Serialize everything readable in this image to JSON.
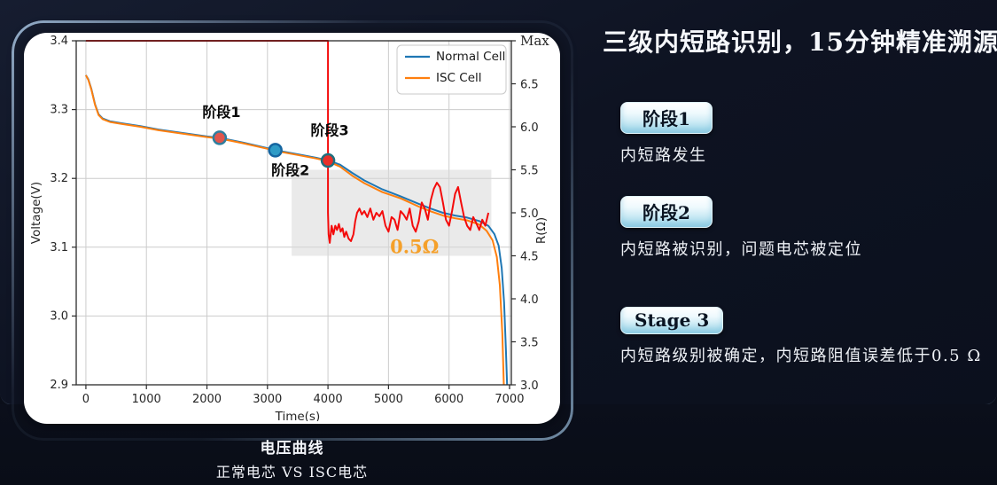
{
  "panel": {
    "title": "三级内短路识别，15分钟精准溯源",
    "stages": [
      {
        "badge": "阶段1",
        "description": "内短路发生"
      },
      {
        "badge": "阶段2",
        "description": "内短路被识别，问题电芯被定位"
      },
      {
        "badge": "Stage 3",
        "description": "内短路级别被确定，内短路阻值误差低于0.5 Ω"
      }
    ]
  },
  "caption": {
    "title": "电压曲线",
    "subtitle": "正常电芯 VS ISC电芯"
  },
  "chart_data": {
    "type": "line",
    "xlabel": "Time(s)",
    "ylabel_left": "Voltage(V)",
    "ylabel_right": "R(Ω)",
    "xlim": [
      -160,
      7030
    ],
    "ylim_left": [
      2.9,
      3.4
    ],
    "ylim_right": [
      3.0,
      7.0
    ],
    "x_ticks": [
      0,
      1000,
      2000,
      3000,
      4000,
      5000,
      6000,
      7000
    ],
    "left_ticks": [
      2.9,
      3.0,
      3.1,
      3.2,
      3.3,
      3.4
    ],
    "right_ticks": [
      {
        "r": 7.0,
        "label": "Max"
      },
      {
        "r": 6.5,
        "label": "6.5"
      },
      {
        "r": 6.0,
        "label": "6.0"
      },
      {
        "r": 5.5,
        "label": "5.5"
      },
      {
        "r": 5.0,
        "label": "5.0"
      },
      {
        "r": 4.5,
        "label": "4.5"
      },
      {
        "r": 4.0,
        "label": "4.0"
      },
      {
        "r": 3.5,
        "label": "3.5"
      },
      {
        "r": 3.0,
        "label": "3.0"
      }
    ],
    "grid": true,
    "colors": {
      "normal": "#1f77b4",
      "isc": "#ff7f0e",
      "resistance": "#f40b0b",
      "grid": "#cccccc",
      "spine": "#2b2b2b",
      "band": "#d9d9d9"
    },
    "legend": {
      "position": "top-right",
      "entries": [
        {
          "label": "Normal Cell",
          "color": "#1f77b4"
        },
        {
          "label": "ISC Cell",
          "color": "#ff7f0e"
        }
      ]
    },
    "band": {
      "x0": 3400,
      "x1": 6700,
      "r0": 4.5,
      "r1": 5.5,
      "opacity": 0.55
    },
    "series": [
      {
        "name": "Normal Cell",
        "axis": "left",
        "color": "#1f77b4",
        "width": 2,
        "points": [
          [
            0,
            3.35
          ],
          [
            40,
            3.344
          ],
          [
            90,
            3.33
          ],
          [
            150,
            3.308
          ],
          [
            210,
            3.293
          ],
          [
            280,
            3.287
          ],
          [
            400,
            3.283
          ],
          [
            600,
            3.28
          ],
          [
            900,
            3.276
          ],
          [
            1200,
            3.271
          ],
          [
            1600,
            3.266
          ],
          [
            2000,
            3.261
          ],
          [
            2210,
            3.259
          ],
          [
            2600,
            3.252
          ],
          [
            3000,
            3.244
          ],
          [
            3130,
            3.241
          ],
          [
            3500,
            3.235
          ],
          [
            3800,
            3.23
          ],
          [
            4000,
            3.226
          ],
          [
            4200,
            3.22
          ],
          [
            4400,
            3.208
          ],
          [
            4600,
            3.197
          ],
          [
            4900,
            3.184
          ],
          [
            5200,
            3.174
          ],
          [
            5500,
            3.163
          ],
          [
            5700,
            3.156
          ],
          [
            5900,
            3.15
          ],
          [
            6100,
            3.146
          ],
          [
            6300,
            3.143
          ],
          [
            6500,
            3.138
          ],
          [
            6650,
            3.131
          ],
          [
            6750,
            3.119
          ],
          [
            6820,
            3.102
          ],
          [
            6870,
            3.07
          ],
          [
            6910,
            3.02
          ],
          [
            6940,
            2.95
          ],
          [
            6960,
            2.9
          ]
        ]
      },
      {
        "name": "ISC Cell",
        "axis": "left",
        "color": "#ff7f0e",
        "width": 2,
        "points": [
          [
            0,
            3.35
          ],
          [
            40,
            3.343
          ],
          [
            90,
            3.329
          ],
          [
            150,
            3.307
          ],
          [
            210,
            3.292
          ],
          [
            280,
            3.286
          ],
          [
            400,
            3.282
          ],
          [
            600,
            3.279
          ],
          [
            900,
            3.275
          ],
          [
            1200,
            3.27
          ],
          [
            1600,
            3.265
          ],
          [
            2000,
            3.26
          ],
          [
            2210,
            3.258
          ],
          [
            2600,
            3.251
          ],
          [
            3000,
            3.243
          ],
          [
            3130,
            3.24
          ],
          [
            3500,
            3.234
          ],
          [
            3800,
            3.229
          ],
          [
            4000,
            3.225
          ],
          [
            4200,
            3.217
          ],
          [
            4400,
            3.204
          ],
          [
            4600,
            3.193
          ],
          [
            4900,
            3.18
          ],
          [
            5200,
            3.171
          ],
          [
            5500,
            3.159
          ],
          [
            5700,
            3.152
          ],
          [
            5900,
            3.146
          ],
          [
            6100,
            3.142
          ],
          [
            6300,
            3.139
          ],
          [
            6500,
            3.133
          ],
          [
            6620,
            3.124
          ],
          [
            6720,
            3.11
          ],
          [
            6790,
            3.086
          ],
          [
            6840,
            3.045
          ],
          [
            6880,
            2.975
          ],
          [
            6905,
            2.9
          ]
        ]
      },
      {
        "name": "ISC Resistance",
        "axis": "right",
        "color": "#f40b0b",
        "width": 2,
        "points": [
          [
            0,
            7.0
          ],
          [
            4000,
            7.0
          ],
          [
            4000,
            5.0
          ],
          [
            4010,
            4.75
          ],
          [
            4030,
            4.65
          ],
          [
            4060,
            4.85
          ],
          [
            4090,
            4.75
          ],
          [
            4120,
            4.85
          ],
          [
            4150,
            4.8
          ],
          [
            4180,
            4.87
          ],
          [
            4210,
            4.78
          ],
          [
            4240,
            4.82
          ],
          [
            4270,
            4.72
          ],
          [
            4300,
            4.78
          ],
          [
            4340,
            4.7
          ],
          [
            4380,
            4.67
          ],
          [
            4420,
            4.75
          ],
          [
            4450,
            4.9
          ],
          [
            4480,
            5.0
          ],
          [
            4520,
            5.05
          ],
          [
            4560,
            4.98
          ],
          [
            4600,
            5.02
          ],
          [
            4650,
            4.95
          ],
          [
            4700,
            5.05
          ],
          [
            4750,
            4.92
          ],
          [
            4800,
            5.0
          ],
          [
            4850,
            4.96
          ],
          [
            4900,
            5.02
          ],
          [
            4950,
            4.85
          ],
          [
            5000,
            4.78
          ],
          [
            5050,
            4.95
          ],
          [
            5100,
            4.92
          ],
          [
            5150,
            4.8
          ],
          [
            5200,
            5.02
          ],
          [
            5250,
            4.98
          ],
          [
            5300,
            4.92
          ],
          [
            5350,
            5.05
          ],
          [
            5400,
            4.85
          ],
          [
            5450,
            4.78
          ],
          [
            5500,
            4.9
          ],
          [
            5550,
            5.12
          ],
          [
            5600,
            5.05
          ],
          [
            5650,
            4.92
          ],
          [
            5700,
            5.15
          ],
          [
            5750,
            5.28
          ],
          [
            5800,
            5.35
          ],
          [
            5850,
            5.3
          ],
          [
            5900,
            5.12
          ],
          [
            5950,
            4.92
          ],
          [
            6000,
            4.85
          ],
          [
            6050,
            5.02
          ],
          [
            6100,
            5.22
          ],
          [
            6150,
            5.3
          ],
          [
            6200,
            5.12
          ],
          [
            6250,
            4.95
          ],
          [
            6300,
            4.85
          ],
          [
            6350,
            4.8
          ],
          [
            6400,
            4.95
          ],
          [
            6450,
            4.88
          ],
          [
            6500,
            4.8
          ],
          [
            6550,
            4.92
          ],
          [
            6600,
            4.85
          ],
          [
            6650,
            5.0
          ]
        ]
      }
    ],
    "markers": [
      {
        "label": "阶段1",
        "t": 2210,
        "v": 3.259,
        "fill": "#e0564d",
        "stroke": "#2e7e9e",
        "lt": 2240,
        "lv": 3.289
      },
      {
        "label": "阶段2",
        "t": 3130,
        "v": 3.241,
        "fill": "#2e9bc6",
        "stroke": "#1565a0",
        "lt": 3380,
        "lv": 3.205
      },
      {
        "label": "阶段3",
        "t": 4000,
        "v": 3.226,
        "fill": "#e8302a",
        "stroke": "#1f6f7e",
        "lt": 4030,
        "lv": 3.263
      }
    ],
    "annotation_ohm": {
      "text": "0.5Ω",
      "t": 5430,
      "r": 4.53,
      "color": "#f5a02a"
    }
  }
}
